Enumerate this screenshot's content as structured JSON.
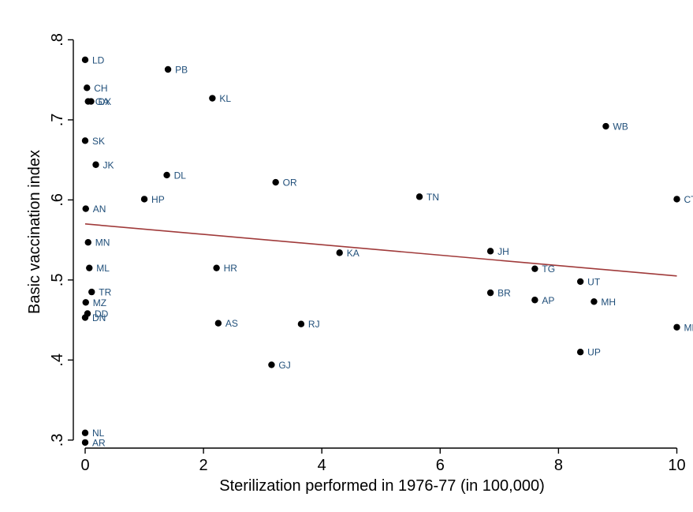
{
  "chart_data": {
    "type": "scatter",
    "xlabel": "Sterilization performed in 1976-77 (in 100,000)",
    "ylabel": "Basic vaccination index",
    "xlim": [
      -0.2,
      10.1
    ],
    "ylim": [
      0.29,
      0.83
    ],
    "xticks": [
      0,
      2,
      4,
      6,
      8,
      10
    ],
    "xtick_labels": [
      "0",
      "2",
      "4",
      "6",
      "8",
      "10"
    ],
    "yticks": [
      0.3,
      0.4,
      0.5,
      0.6,
      0.7,
      0.8
    ],
    "ytick_labels": [
      ".3",
      ".4",
      ".5",
      ".6",
      ".7",
      ".8"
    ],
    "grid": false,
    "colors": {
      "points": "#000000",
      "labels": "#1f4e79",
      "fit_line": "#a03a3a"
    },
    "fit_line": {
      "x": [
        0,
        10
      ],
      "y": [
        0.57,
        0.505
      ]
    },
    "points": [
      {
        "label": "LD",
        "x": 0.0,
        "y": 0.775
      },
      {
        "label": "PB",
        "x": 1.4,
        "y": 0.763
      },
      {
        "label": "CH",
        "x": 0.03,
        "y": 0.74
      },
      {
        "label": "GA",
        "x": 0.05,
        "y": 0.723
      },
      {
        "label": "DX",
        "x": 0.1,
        "y": 0.723
      },
      {
        "label": "KL",
        "x": 2.15,
        "y": 0.727
      },
      {
        "label": "WB",
        "x": 8.8,
        "y": 0.692
      },
      {
        "label": "SK",
        "x": 0.0,
        "y": 0.674
      },
      {
        "label": "JK",
        "x": 0.18,
        "y": 0.644
      },
      {
        "label": "DL",
        "x": 1.38,
        "y": 0.631
      },
      {
        "label": "OR",
        "x": 3.22,
        "y": 0.622
      },
      {
        "label": "TN",
        "x": 5.65,
        "y": 0.604
      },
      {
        "label": "HP",
        "x": 1.0,
        "y": 0.601
      },
      {
        "label": "CT",
        "x": 10.0,
        "y": 0.601
      },
      {
        "label": "AN",
        "x": 0.01,
        "y": 0.589
      },
      {
        "label": "MN",
        "x": 0.05,
        "y": 0.547
      },
      {
        "label": "JH",
        "x": 6.85,
        "y": 0.536
      },
      {
        "label": "KA",
        "x": 4.3,
        "y": 0.534
      },
      {
        "label": "ML",
        "x": 0.07,
        "y": 0.515
      },
      {
        "label": "HR",
        "x": 2.22,
        "y": 0.515
      },
      {
        "label": "TG",
        "x": 7.6,
        "y": 0.514
      },
      {
        "label": "UT",
        "x": 8.37,
        "y": 0.498
      },
      {
        "label": "TR",
        "x": 0.11,
        "y": 0.485
      },
      {
        "label": "BR",
        "x": 6.85,
        "y": 0.484
      },
      {
        "label": "AP",
        "x": 7.6,
        "y": 0.475
      },
      {
        "label": "MH",
        "x": 8.6,
        "y": 0.473
      },
      {
        "label": "MZ",
        "x": 0.01,
        "y": 0.472
      },
      {
        "label": "DD",
        "x": 0.04,
        "y": 0.458
      },
      {
        "label": "DN",
        "x": 0.0,
        "y": 0.453
      },
      {
        "label": "AS",
        "x": 2.25,
        "y": 0.446
      },
      {
        "label": "RJ",
        "x": 3.65,
        "y": 0.445
      },
      {
        "label": "MP",
        "x": 10.0,
        "y": 0.441
      },
      {
        "label": "UP",
        "x": 8.37,
        "y": 0.41
      },
      {
        "label": "GJ",
        "x": 3.15,
        "y": 0.394
      },
      {
        "label": "NL",
        "x": 0.0,
        "y": 0.309
      },
      {
        "label": "AR",
        "x": 0.0,
        "y": 0.297
      }
    ]
  }
}
